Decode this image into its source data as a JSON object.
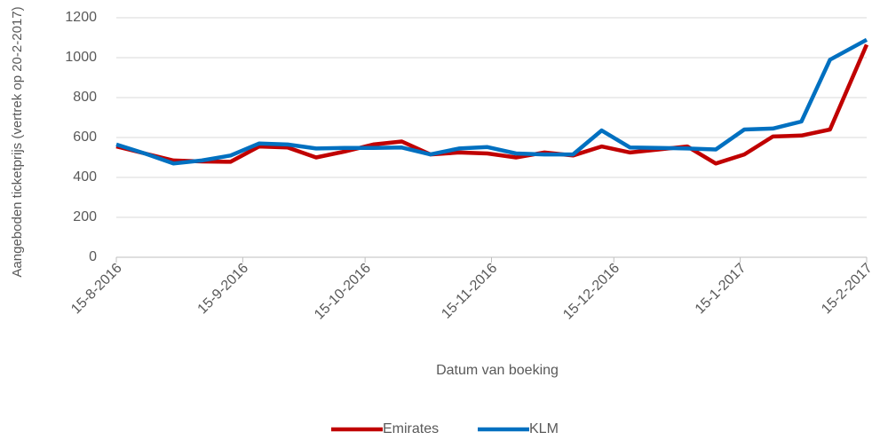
{
  "chart_data": {
    "type": "line",
    "x_label": "Datum van boeking",
    "y_label": "Aangeboden ticketprijs (vertrek op 20-2-2017)",
    "x": [
      "2016-08-15",
      "2016-08-22",
      "2016-08-29",
      "2016-09-05",
      "2016-09-12",
      "2016-09-19",
      "2016-09-26",
      "2016-10-03",
      "2016-10-10",
      "2016-10-17",
      "2016-10-24",
      "2016-10-31",
      "2016-11-07",
      "2016-11-14",
      "2016-11-21",
      "2016-11-28",
      "2016-12-05",
      "2016-12-12",
      "2016-12-19",
      "2016-12-26",
      "2017-01-02",
      "2017-01-09",
      "2017-01-16",
      "2017-01-23",
      "2017-01-30",
      "2017-02-06",
      "2017-02-15"
    ],
    "series": [
      {
        "name": "Emirates",
        "color": "#c00000",
        "values": [
          555,
          520,
          485,
          480,
          478,
          555,
          550,
          500,
          530,
          565,
          580,
          515,
          525,
          520,
          500,
          525,
          510,
          555,
          525,
          540,
          555,
          470,
          515,
          605,
          610,
          640,
          1065
        ]
      },
      {
        "name": "KLM",
        "color": "#0070c0",
        "values": [
          565,
          520,
          470,
          485,
          510,
          570,
          565,
          545,
          548,
          548,
          550,
          515,
          545,
          552,
          520,
          515,
          515,
          635,
          550,
          548,
          545,
          540,
          640,
          645,
          680,
          990,
          1090
        ]
      }
    ],
    "xlim": [
      "2016-08-15",
      "2017-02-15"
    ],
    "xticks": [
      {
        "value": "2016-08-15",
        "label": "15-8-2016"
      },
      {
        "value": "2016-09-15",
        "label": "15-9-2016"
      },
      {
        "value": "2016-10-15",
        "label": "15-10-2016"
      },
      {
        "value": "2016-11-15",
        "label": "15-11-2016"
      },
      {
        "value": "2016-12-15",
        "label": "15-12-2016"
      },
      {
        "value": "2017-01-15",
        "label": "15-1-2017"
      },
      {
        "value": "2017-02-15",
        "label": "15-2-2017"
      }
    ],
    "ylim": [
      0,
      1200
    ],
    "yticks": [
      0,
      200,
      400,
      600,
      800,
      1000,
      1200
    ],
    "grid": true,
    "legend": "bottom"
  }
}
